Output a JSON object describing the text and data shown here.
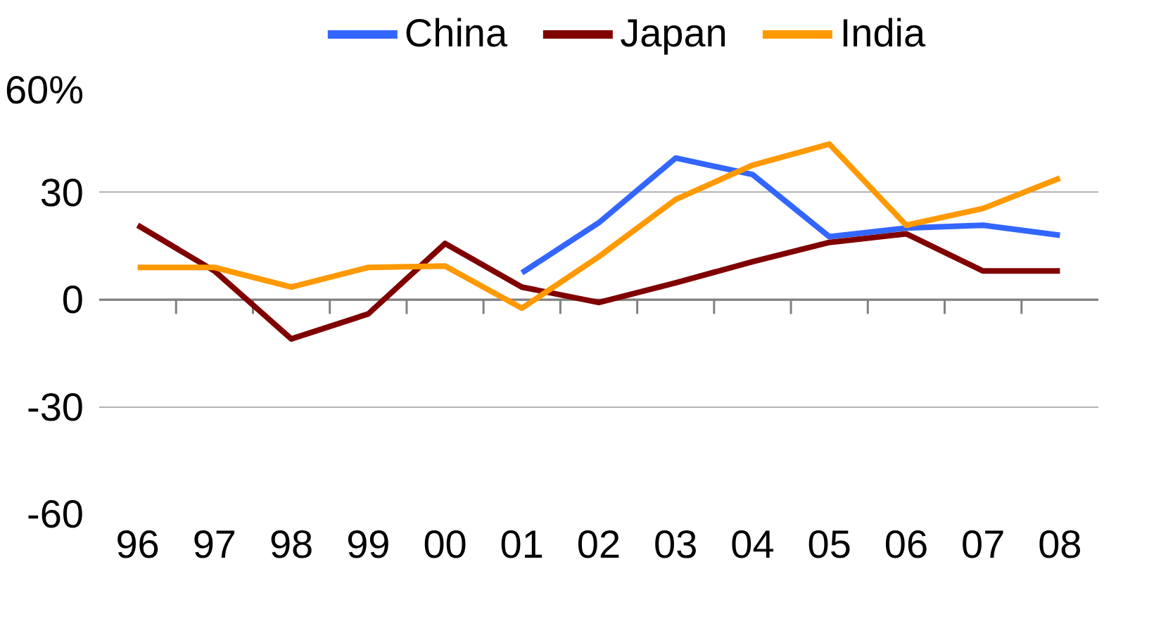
{
  "chart_data": {
    "type": "line",
    "categories": [
      "96",
      "97",
      "98",
      "99",
      "00",
      "01",
      "02",
      "03",
      "04",
      "05",
      "06",
      "07",
      "08"
    ],
    "series": [
      {
        "name": "China",
        "color": "#3366ff",
        "values": [
          null,
          null,
          null,
          null,
          null,
          7.5,
          21.5,
          39.6,
          35,
          17.6,
          20,
          20.8,
          18
        ]
      },
      {
        "name": "Japan",
        "color": "#800000",
        "values": [
          20.8,
          8,
          -11,
          -4,
          15.7,
          3.5,
          -0.8,
          4.7,
          10.6,
          16,
          18.4,
          8,
          8
        ]
      },
      {
        "name": "India",
        "color": "#ff9900",
        "values": [
          9,
          9,
          3.5,
          9,
          9.4,
          -2.4,
          12,
          28,
          37.6,
          43.5,
          20.8,
          25.5,
          34
        ]
      }
    ],
    "ylim": [
      -60,
      60
    ],
    "yticks": [
      {
        "value": 60,
        "label": "60%"
      },
      30,
      0,
      -30,
      -60
    ],
    "grid": "y",
    "legend": "top",
    "marker": "none",
    "line_style": "solid"
  }
}
